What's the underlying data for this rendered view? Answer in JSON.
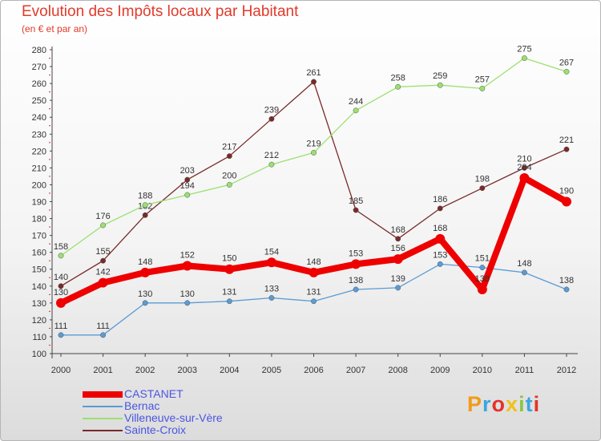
{
  "title": "Evolution des Impôts locaux par Habitant",
  "subtitle": "(en € et par an)",
  "logo": {
    "text": "Proxiti",
    "letter_colors": [
      "#f29a18",
      "#3aa6e0",
      "#e5322b",
      "#f2c018",
      "#8cc63f",
      "#3aa6e0",
      "#e5322b"
    ]
  },
  "chart_data": {
    "type": "line",
    "x": [
      "2000",
      "2001",
      "2002",
      "2003",
      "2004",
      "2005",
      "2006",
      "2007",
      "2008",
      "2009",
      "2010",
      "2011",
      "2012"
    ],
    "ylim": [
      100,
      280
    ],
    "yticks": [
      100,
      110,
      120,
      130,
      140,
      150,
      160,
      170,
      180,
      190,
      200,
      210,
      220,
      230,
      240,
      250,
      260,
      270,
      280
    ],
    "grid": false,
    "legend_position": "bottom-left",
    "series": [
      {
        "name": "CASTANET",
        "color": "#ee0000",
        "values": [
          130,
          142,
          148,
          152,
          150,
          154,
          148,
          153,
          156,
          168,
          138,
          204,
          190
        ]
      },
      {
        "name": "Bernac",
        "color": "#5a9bd5",
        "values": [
          111,
          111,
          130,
          130,
          131,
          133,
          131,
          138,
          139,
          153,
          151,
          148,
          138
        ]
      },
      {
        "name": "Villeneuve-sur-Vère",
        "color": "#9be070",
        "values": [
          158,
          176,
          188,
          194,
          200,
          212,
          219,
          244,
          258,
          259,
          257,
          275,
          267
        ]
      },
      {
        "name": "Sainte-Croix",
        "color": "#7a2a2a",
        "values": [
          140,
          155,
          182,
          203,
          217,
          239,
          261,
          185,
          168,
          186,
          198,
          210,
          221
        ]
      }
    ]
  }
}
